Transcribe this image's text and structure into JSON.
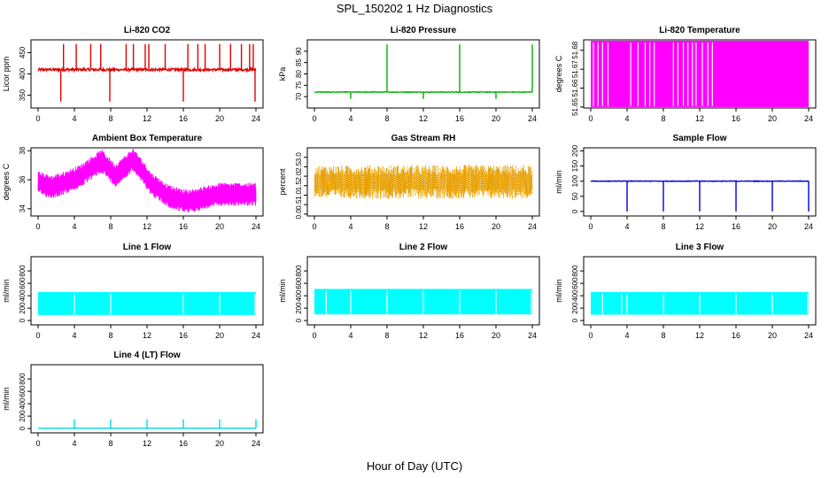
{
  "figure_title": "SPL_150202  1 Hz Diagnostics",
  "x_axis_label": "Hour of Day (UTC)",
  "chart_data": [
    {
      "type": "line",
      "title": "Li-820 CO2",
      "ylabel": "Licor ppm",
      "color": "#e00000",
      "x_ticks": [
        "0",
        "4",
        "8",
        "12",
        "16",
        "20",
        "24"
      ],
      "xlim": [
        0,
        24
      ],
      "ylim": [
        320,
        480
      ],
      "y_ticks": [
        {
          "v": 350,
          "l": "350"
        },
        {
          "v": 400,
          "l": "400"
        },
        {
          "v": 450,
          "l": "450"
        }
      ],
      "baseline": 410,
      "noise": 3,
      "spikes_up": [
        2.8,
        4.2,
        5.8,
        6.9,
        9.7,
        10.5,
        11.8,
        12.2,
        14.0,
        16.5,
        17.6,
        18.4,
        20.0,
        21.2,
        22.4,
        23.3,
        23.7
      ],
      "spike_up_to": 470,
      "dips": [
        2.5,
        7.9,
        16.0,
        23.9
      ],
      "dip_to": 335
    },
    {
      "type": "line",
      "title": "Li-820 Pressure",
      "ylabel": "kPa",
      "color": "#00b000",
      "x_ticks": [
        "0",
        "4",
        "8",
        "12",
        "16",
        "20",
        "24"
      ],
      "xlim": [
        0,
        24
      ],
      "ylim": [
        65,
        95
      ],
      "y_ticks": [
        {
          "v": 70,
          "l": "70"
        },
        {
          "v": 75,
          "l": "75"
        },
        {
          "v": 80,
          "l": "80"
        },
        {
          "v": 85,
          "l": "85"
        },
        {
          "v": 90,
          "l": "90"
        }
      ],
      "baseline": 72,
      "noise": 0.15,
      "spikes_up": [
        8.0,
        16.0,
        24.0
      ],
      "spike_up_to": 93,
      "dips": [
        4.0,
        12.0,
        20.0
      ],
      "dip_to": 69
    },
    {
      "type": "band",
      "title": "Li-820 Temperature",
      "ylabel": "degrees C",
      "color": "#ff00ff",
      "x_ticks": [
        "0",
        "4",
        "8",
        "12",
        "16",
        "20",
        "24"
      ],
      "xlim": [
        0,
        24
      ],
      "ylim": [
        51.6495,
        51.6855
      ],
      "y_ticks": [
        {
          "v": 51.65,
          "l": "51.65"
        },
        {
          "v": 51.66,
          "l": "51.66"
        },
        {
          "v": 51.67,
          "l": "51.67"
        },
        {
          "v": 51.68,
          "l": "51.68"
        }
      ],
      "band_low": 51.65,
      "band_high": 51.685,
      "gaps": [
        0.3,
        0.8,
        1.3,
        1.9,
        4.4,
        5.2,
        6.0,
        6.5,
        7.0,
        9.1,
        9.6,
        10.2,
        10.7,
        11.2,
        11.6,
        12.3,
        12.9,
        13.4
      ]
    },
    {
      "type": "trend",
      "title": "Ambient Box Temperature",
      "ylabel": "degrees C",
      "color": "#ff00ff",
      "x_ticks": [
        "0",
        "4",
        "8",
        "12",
        "16",
        "20",
        "24"
      ],
      "xlim": [
        0,
        24
      ],
      "ylim": [
        33.5,
        38.2
      ],
      "y_ticks": [
        {
          "v": 34,
          "l": "34"
        },
        {
          "v": 36,
          "l": "36"
        },
        {
          "v": 38,
          "l": "38"
        }
      ],
      "trend_x": [
        0,
        1.5,
        3,
        4.5,
        7,
        8.5,
        10.5,
        12.5,
        14.5,
        16.5,
        18,
        20,
        22,
        24
      ],
      "trend_y": [
        35.8,
        35.5,
        35.8,
        36.2,
        37.3,
        36.3,
        37.4,
        35.7,
        34.8,
        34.5,
        34.7,
        35.0,
        35.0,
        35.0
      ],
      "amplitude": 0.8
    },
    {
      "type": "scatter",
      "title": "Gas Stream RH",
      "ylabel": "percent",
      "color": "#e8a000",
      "x_ticks": [
        "0",
        "4",
        "8",
        "12",
        "16",
        "20",
        "24"
      ],
      "xlim": [
        0,
        24
      ],
      "ylim": [
        -0.1,
        3.5
      ],
      "y_ticks": [
        {
          "v": 0,
          "l": "0.0"
        },
        {
          "v": 0.5,
          "l": "0.5"
        },
        {
          "v": 1.0,
          "l": "1.0"
        },
        {
          "v": 1.5,
          "l": "1.5"
        },
        {
          "v": 2.0,
          "l": "2.0"
        },
        {
          "v": 2.5,
          "l": "2.5"
        },
        {
          "v": 3.0,
          "l": "3.0"
        }
      ],
      "center": 1.7,
      "spread": 0.9
    },
    {
      "type": "line",
      "title": "Sample Flow",
      "ylabel": "ml/min",
      "color": "#0000dd",
      "x_ticks": [
        "0",
        "4",
        "8",
        "12",
        "16",
        "20",
        "24"
      ],
      "xlim": [
        0,
        24
      ],
      "ylim": [
        -15,
        210
      ],
      "y_ticks": [
        {
          "v": 0,
          "l": "0"
        },
        {
          "v": 50,
          "l": "50"
        },
        {
          "v": 100,
          "l": "100"
        },
        {
          "v": 150,
          "l": "150"
        },
        {
          "v": 200,
          "l": "200"
        }
      ],
      "baseline": 100,
      "noise": 1,
      "spikes_up": [],
      "spike_up_to": 100,
      "dips": [
        4.0,
        8.0,
        12.0,
        16.0,
        20.0,
        24.0
      ],
      "dip_to": 0
    },
    {
      "type": "band",
      "title": "Line 1 Flow",
      "ylabel": "ml/min",
      "color": "#00ffff",
      "x_ticks": [
        "0",
        "4",
        "8",
        "12",
        "16",
        "20",
        "24"
      ],
      "xlim": [
        0,
        24
      ],
      "ylim": [
        -70,
        1030
      ],
      "y_ticks": [
        {
          "v": 0,
          "l": "0"
        },
        {
          "v": 200,
          "l": "200"
        },
        {
          "v": 400,
          "l": "400"
        },
        {
          "v": 600,
          "l": "600"
        },
        {
          "v": 800,
          "l": "800"
        }
      ],
      "band_low": 90,
      "band_high": 460,
      "gaps": [
        4.0,
        8.0,
        16.0,
        20.0,
        23.9
      ]
    },
    {
      "type": "band",
      "title": "Line 2 Flow",
      "ylabel": "ml/min",
      "color": "#00ffff",
      "x_ticks": [
        "0",
        "4",
        "8",
        "12",
        "16",
        "20",
        "24"
      ],
      "xlim": [
        0,
        24
      ],
      "ylim": [
        -70,
        1030
      ],
      "y_ticks": [
        {
          "v": 0,
          "l": "0"
        },
        {
          "v": 200,
          "l": "200"
        },
        {
          "v": 400,
          "l": "400"
        },
        {
          "v": 600,
          "l": "600"
        },
        {
          "v": 800,
          "l": "800"
        }
      ],
      "band_low": 100,
      "band_high": 510,
      "gaps": [
        1.3,
        4.0,
        8.0,
        12.0,
        16.0,
        20.0,
        23.9
      ]
    },
    {
      "type": "band",
      "title": "Line 3 Flow",
      "ylabel": "ml/min",
      "color": "#00ffff",
      "x_ticks": [
        "0",
        "4",
        "8",
        "12",
        "16",
        "20",
        "24"
      ],
      "xlim": [
        0,
        24
      ],
      "ylim": [
        -70,
        1030
      ],
      "y_ticks": [
        {
          "v": 0,
          "l": "0"
        },
        {
          "v": 200,
          "l": "200"
        },
        {
          "v": 400,
          "l": "400"
        },
        {
          "v": 600,
          "l": "600"
        },
        {
          "v": 800,
          "l": "800"
        }
      ],
      "band_low": 95,
      "band_high": 460,
      "gaps": [
        1.3,
        3.4,
        4.0,
        8.0,
        12.0,
        16.0,
        20.0,
        23.9
      ]
    },
    {
      "type": "line",
      "title": "Line 4 (LT) Flow",
      "ylabel": "ml/min",
      "color": "#00dddd",
      "x_ticks": [
        "0",
        "4",
        "8",
        "12",
        "16",
        "20",
        "24"
      ],
      "xlim": [
        0,
        24
      ],
      "ylim": [
        -70,
        1030
      ],
      "y_ticks": [
        {
          "v": 0,
          "l": "0"
        },
        {
          "v": 200,
          "l": "200"
        },
        {
          "v": 400,
          "l": "400"
        },
        {
          "v": 600,
          "l": "600"
        },
        {
          "v": 800,
          "l": "800"
        }
      ],
      "baseline": 5,
      "noise": 1,
      "spikes_up": [
        4.0,
        8.0,
        12.0,
        16.0,
        20.0,
        24.0
      ],
      "spike_up_to": 150,
      "dips": [],
      "dip_to": 0
    }
  ]
}
